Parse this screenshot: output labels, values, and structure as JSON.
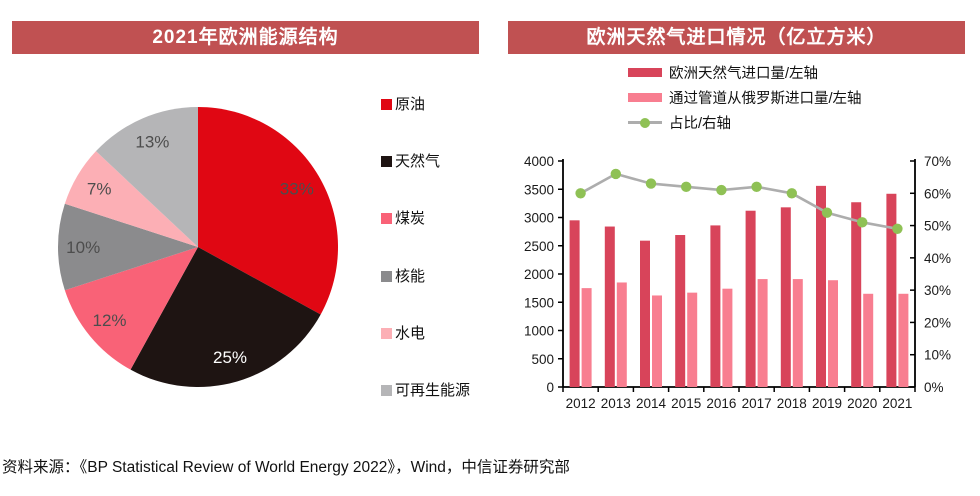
{
  "page": {
    "source_note": "资料来源：《BP Statistical Review of World Energy 2022》，Wind，中信证券研究部"
  },
  "left_panel": {
    "title": "2021年欧洲能源结构",
    "header_bg": "#C05152"
  },
  "right_panel": {
    "title": "欧洲天然气进口情况（亿立方米）",
    "header_bg": "#C05152"
  },
  "chart_data": [
    {
      "type": "pie",
      "title": "2021年欧洲能源结构",
      "labels": [
        "原油",
        "天然气",
        "煤炭",
        "核能",
        "水电",
        "可再生能源"
      ],
      "values": [
        33,
        25,
        12,
        10,
        7,
        13
      ],
      "value_labels": [
        "33%",
        "25%",
        "12%",
        "10%",
        "7%",
        "13%"
      ],
      "colors": [
        "#E00713",
        "#1E1412",
        "#F96277",
        "#8B8B8D",
        "#FCAFB5",
        "#B5B5B7"
      ],
      "label_colors": [
        "#4D4D4D",
        "#FFFFFF",
        "#4D4D4D",
        "#4D4D4D",
        "#4D4D4D",
        "#4D4D4D"
      ],
      "start_angle_deg": 0,
      "direction": "clockwise",
      "legend_position": "right"
    },
    {
      "type": "bar+line",
      "title": "欧洲天然气进口情况（亿立方米）",
      "categories": [
        "2012",
        "2013",
        "2014",
        "2015",
        "2016",
        "2017",
        "2018",
        "2019",
        "2020",
        "2021"
      ],
      "series": [
        {
          "name": "欧洲天然气进口量/左轴",
          "kind": "bar",
          "axis": "left",
          "color": "#D8445A",
          "values": [
            2950,
            2840,
            2590,
            2690,
            2860,
            3120,
            3180,
            3560,
            3270,
            3420
          ]
        },
        {
          "name": "通过管道从俄罗斯进口量/左轴",
          "kind": "bar",
          "axis": "left",
          "color": "#F87E90",
          "values": [
            1750,
            1850,
            1620,
            1670,
            1740,
            1910,
            1910,
            1890,
            1650,
            1650
          ]
        },
        {
          "name": "占比/右轴",
          "kind": "line",
          "axis": "right",
          "color": "#ADADAD",
          "marker_color": "#8FC155",
          "values": [
            60,
            66,
            63,
            62,
            61,
            62,
            60,
            54,
            51,
            49
          ]
        }
      ],
      "left_axis": {
        "min": 0,
        "max": 4000,
        "step": 500
      },
      "right_axis": {
        "min": 0,
        "max": 70,
        "step": 10,
        "suffix": "%"
      },
      "axis_text_color": "#1a1a1a",
      "legend_position": "top",
      "grid": false
    }
  ]
}
